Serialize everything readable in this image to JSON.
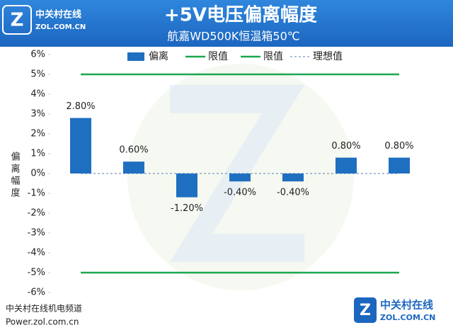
{
  "chart_data": {
    "type": "bar",
    "title": "+5V电压偏离幅度",
    "subtitle": "航嘉WD500K恒温箱50℃",
    "y_label": "偏离幅度",
    "categories": [
      null,
      null,
      null,
      null,
      null,
      null,
      null
    ],
    "series": [
      {
        "name": "偏离",
        "type": "bar",
        "color": "#1f6fc0",
        "values": [
          2.8,
          0.6,
          -1.2,
          -0.4,
          -0.4,
          0.8,
          0.8
        ],
        "value_labels": [
          "2.80%",
          "0.60%",
          "-1.20%",
          "-0.40%",
          "-0.40%",
          "0.80%",
          "0.80%"
        ]
      },
      {
        "name": "限值",
        "type": "line",
        "color": "#1aa84f",
        "values": [
          5,
          5,
          5,
          5,
          5,
          5,
          5
        ]
      },
      {
        "name": "限值",
        "type": "line",
        "color": "#1aa84f",
        "values": [
          -5,
          -5,
          -5,
          -5,
          -5,
          -5,
          -5
        ]
      },
      {
        "name": "理想值",
        "type": "line",
        "color": "#5b7fb0",
        "dashed": true,
        "values": [
          0,
          0,
          0,
          0,
          0,
          0,
          0
        ]
      }
    ],
    "ylim": [
      -6,
      6
    ],
    "yticks": [
      {
        "value": -6,
        "label": "-6%"
      },
      {
        "value": -5,
        "label": "-5%"
      },
      {
        "value": -4,
        "label": "-4%"
      },
      {
        "value": -3,
        "label": "-3%"
      },
      {
        "value": -2,
        "label": "-2%"
      },
      {
        "value": -1,
        "label": "-1%"
      },
      {
        "value": 0,
        "label": "0%"
      },
      {
        "value": 1,
        "label": "1%"
      },
      {
        "value": 2,
        "label": "2%"
      },
      {
        "value": 3,
        "label": "3%"
      },
      {
        "value": 4,
        "label": "4%"
      },
      {
        "value": 5,
        "label": "5%"
      },
      {
        "value": 6,
        "label": "6%"
      }
    ],
    "grid": false,
    "legend": "top"
  },
  "logo": {
    "name": "中关村在线",
    "domain": "ZOL.COM.CN"
  },
  "footer": {
    "channel": "中关村在线机电频道",
    "site": "Power.zol.com.cn"
  }
}
